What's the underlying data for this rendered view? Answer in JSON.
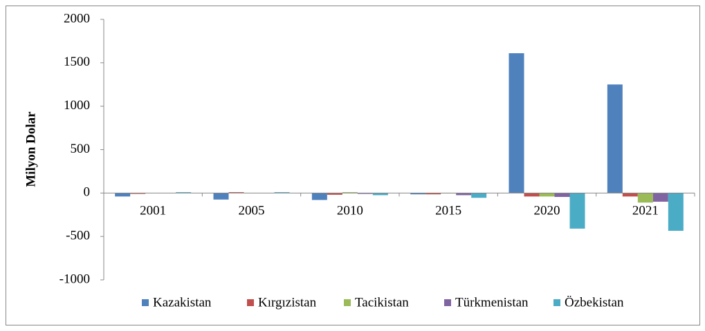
{
  "chart_data": {
    "type": "bar",
    "y_label": "Milyon Dolar",
    "categories": [
      "2001",
      "2005",
      "2010",
      "2015",
      "2020",
      "2021"
    ],
    "series": [
      {
        "name": "Kazakistan",
        "color": "#4f81bd",
        "values": [
          -40,
          -75,
          -80,
          -15,
          1610,
          1250
        ]
      },
      {
        "name": "Kırgızistan",
        "color": "#c0504d",
        "values": [
          -10,
          10,
          -20,
          -15,
          -40,
          -40
        ]
      },
      {
        "name": "Tacikistan",
        "color": "#9bbb59",
        "values": [
          0,
          0,
          10,
          -5,
          -40,
          -110
        ]
      },
      {
        "name": "Türkmenistan",
        "color": "#8064a2",
        "values": [
          0,
          0,
          -10,
          -25,
          -45,
          -100
        ]
      },
      {
        "name": "Özbekistan",
        "color": "#4bacc6",
        "values": [
          10,
          10,
          -25,
          -55,
          -410,
          -435
        ]
      }
    ],
    "ylim": [
      -1000,
      2000
    ],
    "yticks": [
      -1000,
      -500,
      0,
      500,
      1000,
      1500,
      2000
    ],
    "legend": "bottom"
  }
}
